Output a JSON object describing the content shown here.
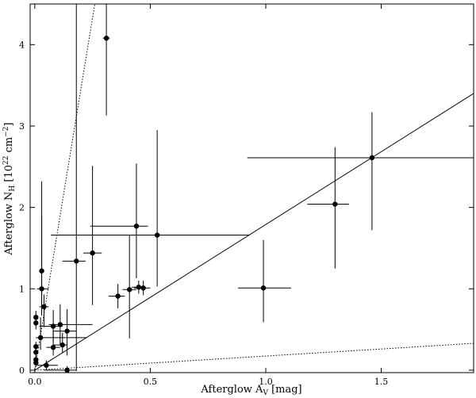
{
  "chart_data": {
    "type": "scatter",
    "xlabel": "Afterglow A",
    "xlabel_sub": "V",
    "xlabel_unit": " [mag]",
    "ylabel": "Afterglow N",
    "ylabel_sub": "H",
    "ylabel_unit": " [10",
    "ylabel_exp": "22",
    "ylabel_unit2": " cm",
    "ylabel_exp2": "−2",
    "ylabel_close": "]",
    "xlim": [
      -0.02,
      1.9
    ],
    "ylim": [
      -0.03,
      4.5
    ],
    "xticks": [
      {
        "value": 0.0,
        "label": "0.0"
      },
      {
        "value": 0.5,
        "label": "0.5"
      },
      {
        "value": 1.0,
        "label": "1.0"
      },
      {
        "value": 1.5,
        "label": "1.5"
      }
    ],
    "yticks": [
      {
        "value": 0,
        "label": "0"
      },
      {
        "value": 1,
        "label": "1"
      },
      {
        "value": 2,
        "label": "2"
      },
      {
        "value": 3,
        "label": "3"
      },
      {
        "value": 4,
        "label": "4"
      }
    ],
    "lines": [
      {
        "style": "solid",
        "points": [
          [
            0.0,
            0.0
          ],
          [
            1.9,
            3.4
          ]
        ]
      },
      {
        "style": "dotted",
        "points": [
          [
            0.0,
            0.0
          ],
          [
            0.26,
            4.5
          ]
        ]
      },
      {
        "style": "dotted",
        "points": [
          [
            0.0,
            0.0
          ],
          [
            1.9,
            0.33
          ]
        ]
      }
    ],
    "points": [
      {
        "x": 0.31,
        "y": 4.08,
        "xerr": [
          0.015,
          0.015
        ],
        "yerr": [
          0.95,
          1.3
        ]
      },
      {
        "x": 1.46,
        "y": 2.61,
        "xerr": [
          0.54,
          0.44
        ],
        "yerr": [
          0.89,
          0.56
        ]
      },
      {
        "x": 1.3,
        "y": 2.04,
        "xerr": [
          0.12,
          0.06
        ],
        "yerr": [
          0.79,
          0.7
        ]
      },
      {
        "x": 0.99,
        "y": 1.01,
        "xerr": [
          0.11,
          0.12
        ],
        "yerr": [
          0.42,
          0.59
        ]
      },
      {
        "x": 0.53,
        "y": 1.66,
        "xerr": [
          0.46,
          0.4
        ],
        "yerr": [
          0.63,
          1.29
        ]
      },
      {
        "x": 0.44,
        "y": 1.77,
        "xerr": [
          0.2,
          0.05
        ],
        "yerr": [
          0.64,
          0.77
        ]
      },
      {
        "x": 0.25,
        "y": 1.44,
        "xerr": [
          0.04,
          0.04
        ],
        "yerr": [
          0.64,
          1.07
        ]
      },
      {
        "x": 0.18,
        "y": 1.34,
        "xerr": [
          0.06,
          0.04
        ],
        "yerr": [
          1.35,
          3.2
        ]
      },
      {
        "x": 0.45,
        "y": 1.02,
        "xerr": [
          0.03,
          0.03
        ],
        "yerr": [
          0.08,
          0.08
        ]
      },
      {
        "x": 0.47,
        "y": 1.01,
        "xerr": [
          0.04,
          0.03
        ],
        "yerr": [
          0.09,
          0.09
        ]
      },
      {
        "x": 0.41,
        "y": 0.99,
        "xerr": [
          0.03,
          0.03
        ],
        "yerr": [
          0.6,
          0.67
        ]
      },
      {
        "x": 0.36,
        "y": 0.91,
        "xerr": [
          0.04,
          0.03
        ],
        "yerr": [
          0.15,
          0.15
        ]
      },
      {
        "x": 0.03,
        "y": 1.22,
        "xerr": [
          0.01,
          0.01
        ],
        "yerr": [
          0.55,
          1.1
        ]
      },
      {
        "x": 0.03,
        "y": 1.0,
        "xerr": [
          0.02,
          0.03
        ],
        "yerr": [
          0.3,
          0.9
        ]
      },
      {
        "x": 0.04,
        "y": 0.78,
        "xerr": [
          0.02,
          0.02
        ],
        "yerr": [
          0.25,
          0.15
        ]
      },
      {
        "x": 0.005,
        "y": 0.65,
        "xerr": [
          0.005,
          0.005
        ],
        "yerr": [
          0.08,
          0.08
        ]
      },
      {
        "x": 0.005,
        "y": 0.58,
        "xerr": [
          0.005,
          0.005
        ],
        "yerr": [
          0.08,
          0.08
        ]
      },
      {
        "x": 0.08,
        "y": 0.54,
        "xerr": [
          0.06,
          0.04
        ],
        "yerr": [
          0.2,
          0.2
        ]
      },
      {
        "x": 0.11,
        "y": 0.56,
        "xerr": [
          0.05,
          0.14
        ],
        "yerr": [
          0.25,
          0.25
        ]
      },
      {
        "x": 0.14,
        "y": 0.48,
        "xerr": [
          0.06,
          0.04
        ],
        "yerr": [
          0.3,
          0.27
        ]
      },
      {
        "x": 0.025,
        "y": 0.4,
        "xerr": [
          0.02,
          0.2
        ],
        "yerr": [
          0.15,
          0.25
        ]
      },
      {
        "x": 0.12,
        "y": 0.31,
        "xerr": [
          0.04,
          0.02
        ],
        "yerr": [
          0.1,
          0.15
        ]
      },
      {
        "x": 0.08,
        "y": 0.28,
        "xerr": [
          0.03,
          0.03
        ],
        "yerr": [
          0.1,
          0.2
        ]
      },
      {
        "x": 0.005,
        "y": 0.29,
        "xerr": [
          0.005,
          0.01
        ],
        "yerr": [
          0.06,
          0.06
        ]
      },
      {
        "x": 0.005,
        "y": 0.22,
        "xerr": [
          0.005,
          0.01
        ],
        "yerr": [
          0.06,
          0.06
        ]
      },
      {
        "x": 0.005,
        "y": 0.13,
        "xerr": [
          0.005,
          0.01
        ],
        "yerr": [
          0.05,
          0.05
        ]
      },
      {
        "x": 0.005,
        "y": 0.09,
        "xerr": [
          0.005,
          0.01
        ],
        "yerr": [
          0.05,
          0.05
        ]
      },
      {
        "x": 0.05,
        "y": 0.06,
        "xerr": [
          0.04,
          0.05
        ],
        "yerr": [
          0.06,
          0.06
        ]
      },
      {
        "x": 0.14,
        "y": 0.0,
        "xerr": [
          0.1,
          0.04
        ],
        "yerr": [
          0.05,
          0.05
        ]
      }
    ],
    "grid": false,
    "legend": "none"
  }
}
